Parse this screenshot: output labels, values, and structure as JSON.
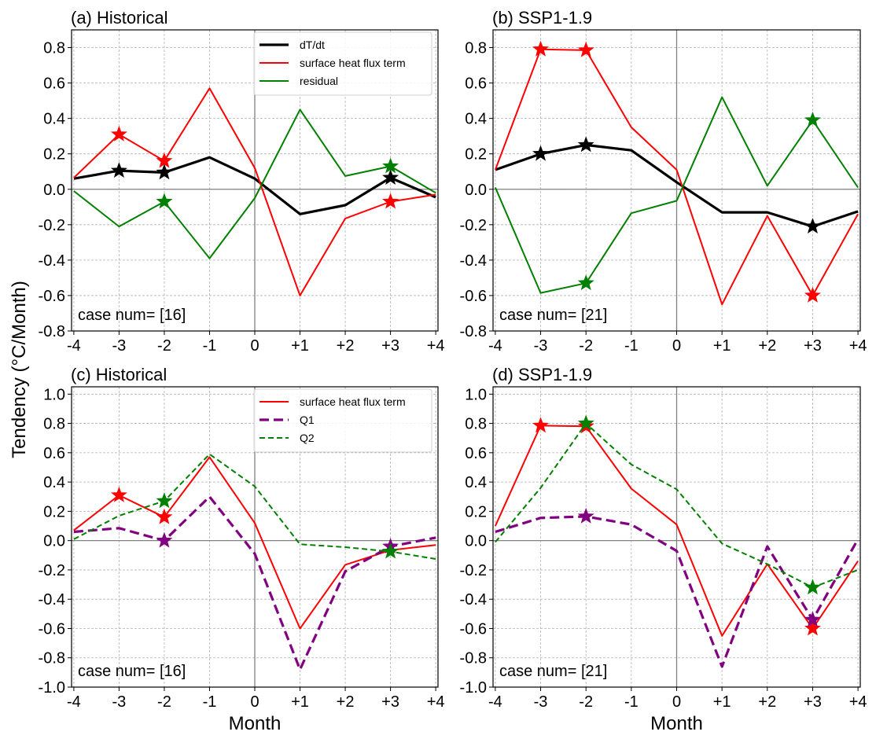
{
  "figure": {
    "ylabel": "Tendency (°C/Month)",
    "xlabel": "Month"
  },
  "chart_data": [
    {
      "type": "line",
      "title": "(a) Historical",
      "xlabel": "",
      "ylabel": "Tendency (°C/Month)",
      "categories": [
        "-4",
        "-3",
        "-2",
        "-1",
        "0",
        "+1",
        "+2",
        "+3",
        "+4"
      ],
      "x": [
        -4,
        -3,
        -2,
        -1,
        0,
        1,
        2,
        3,
        4
      ],
      "xlim": [
        -4.05,
        4.05
      ],
      "ylim": [
        -0.8,
        0.9
      ],
      "yticks": [
        -0.8,
        -0.6,
        -0.4,
        -0.2,
        0.0,
        0.2,
        0.4,
        0.6,
        0.8
      ],
      "ytick_labels": [
        "-0.8",
        "-0.6",
        "-0.4",
        "-0.2",
        "0.0",
        "0.2",
        "0.4",
        "0.6",
        "0.8"
      ],
      "grid": true,
      "legend": "top-right",
      "annotation": "case num= [16]",
      "series": [
        {
          "name": "dT/dt",
          "color": "#000000",
          "style": "solid",
          "width": "thick",
          "values": [
            0.06,
            0.105,
            0.095,
            0.18,
            0.06,
            -0.14,
            -0.09,
            0.065,
            -0.045
          ],
          "star_at": [
            "-3",
            "-2",
            "+3"
          ]
        },
        {
          "name": "surface heat flux term",
          "color": "#ff0000",
          "style": "solid",
          "width": "normal",
          "values": [
            0.065,
            0.31,
            0.16,
            0.57,
            0.12,
            -0.6,
            -0.165,
            -0.07,
            -0.03
          ],
          "star_at": [
            "-3",
            "-2",
            "+3"
          ]
        },
        {
          "name": "residual",
          "color": "#008000",
          "style": "solid",
          "width": "normal",
          "values": [
            -0.01,
            -0.21,
            -0.07,
            -0.39,
            -0.05,
            0.45,
            0.075,
            0.13,
            -0.02
          ],
          "star_at": [
            "-2",
            "+3"
          ]
        }
      ]
    },
    {
      "type": "line",
      "title": "(b) SSP1-1.9",
      "xlabel": "",
      "ylabel": "",
      "categories": [
        "-4",
        "-3",
        "-2",
        "-1",
        "0",
        "+1",
        "+2",
        "+3",
        "+4"
      ],
      "x": [
        -4,
        -3,
        -2,
        -1,
        0,
        1,
        2,
        3,
        4
      ],
      "xlim": [
        -4.05,
        4.05
      ],
      "ylim": [
        -0.8,
        0.9
      ],
      "yticks": [
        -0.8,
        -0.6,
        -0.4,
        -0.2,
        0.0,
        0.2,
        0.4,
        0.6,
        0.8
      ],
      "ytick_labels": [
        "-0.8",
        "-0.6",
        "-0.4",
        "-0.2",
        "0.0",
        "0.2",
        "0.4",
        "0.6",
        "0.8"
      ],
      "grid": true,
      "legend": "none",
      "annotation": "case num= [21]",
      "series": [
        {
          "name": "dT/dt",
          "color": "#000000",
          "style": "solid",
          "width": "thick",
          "values": [
            0.11,
            0.2,
            0.25,
            0.22,
            0.04,
            -0.13,
            -0.13,
            -0.21,
            -0.125
          ],
          "star_at": [
            "-3",
            "-2",
            "+3"
          ]
        },
        {
          "name": "surface heat flux term",
          "color": "#ff0000",
          "style": "solid",
          "width": "normal",
          "values": [
            0.11,
            0.79,
            0.785,
            0.35,
            0.11,
            -0.65,
            -0.15,
            -0.6,
            -0.14
          ],
          "star_at": [
            "-3",
            "-2",
            "+3"
          ]
        },
        {
          "name": "residual",
          "color": "#008000",
          "style": "solid",
          "width": "normal",
          "values": [
            0.01,
            -0.585,
            -0.53,
            -0.135,
            -0.065,
            0.52,
            0.02,
            0.39,
            0.01
          ],
          "star_at": [
            "-2",
            "+3"
          ]
        }
      ]
    },
    {
      "type": "line",
      "title": "(c) Historical",
      "xlabel": "Month",
      "ylabel": "Tendency (°C/Month)",
      "categories": [
        "-4",
        "-3",
        "-2",
        "-1",
        "0",
        "+1",
        "+2",
        "+3",
        "+4"
      ],
      "x": [
        -4,
        -3,
        -2,
        -1,
        0,
        1,
        2,
        3,
        4
      ],
      "xlim": [
        -4.05,
        4.05
      ],
      "ylim": [
        -1.0,
        1.05
      ],
      "yticks": [
        -1.0,
        -0.8,
        -0.6,
        -0.4,
        -0.2,
        0.0,
        0.2,
        0.4,
        0.6,
        0.8,
        1.0
      ],
      "ytick_labels": [
        "-1.0",
        "-0.8",
        "-0.6",
        "-0.4",
        "-0.2",
        "0.0",
        "0.2",
        "0.4",
        "0.6",
        "0.8",
        "1.0"
      ],
      "grid": true,
      "legend": "top-right",
      "annotation": "case num= [16]",
      "series": [
        {
          "name": "surface heat flux term",
          "color": "#ff0000",
          "style": "solid",
          "width": "normal",
          "values": [
            0.07,
            0.31,
            0.16,
            0.57,
            0.12,
            -0.6,
            -0.165,
            -0.065,
            -0.03
          ],
          "star_at": [
            "-3",
            "-2"
          ]
        },
        {
          "name": "Q1",
          "color": "#800080",
          "style": "long-dash",
          "width": "thick",
          "values": [
            0.06,
            0.085,
            0.0,
            0.3,
            -0.09,
            -0.88,
            -0.21,
            -0.04,
            0.02
          ],
          "star_at": [
            "-2",
            "+3"
          ]
        },
        {
          "name": "Q2",
          "color": "#008000",
          "style": "dash",
          "width": "normal",
          "values": [
            0.01,
            0.17,
            0.27,
            0.59,
            0.37,
            -0.025,
            -0.045,
            -0.075,
            -0.125
          ],
          "star_at": [
            "-2",
            "+3"
          ]
        }
      ]
    },
    {
      "type": "line",
      "title": "(d) SSP1-1.9",
      "xlabel": "Month",
      "ylabel": "",
      "categories": [
        "-4",
        "-3",
        "-2",
        "-1",
        "0",
        "+1",
        "+2",
        "+3",
        "+4"
      ],
      "x": [
        -4,
        -3,
        -2,
        -1,
        0,
        1,
        2,
        3,
        4
      ],
      "xlim": [
        -4.05,
        4.05
      ],
      "ylim": [
        -1.0,
        1.05
      ],
      "yticks": [
        -1.0,
        -0.8,
        -0.6,
        -0.4,
        -0.2,
        0.0,
        0.2,
        0.4,
        0.6,
        0.8,
        1.0
      ],
      "ytick_labels": [
        "-1.0",
        "-0.8",
        "-0.6",
        "-0.4",
        "-0.2",
        "0.0",
        "0.2",
        "0.4",
        "0.6",
        "0.8",
        "1.0"
      ],
      "grid": true,
      "legend": "none",
      "annotation": "case num= [21]",
      "series": [
        {
          "name": "surface heat flux term",
          "color": "#ff0000",
          "style": "solid",
          "width": "normal",
          "values": [
            0.1,
            0.785,
            0.78,
            0.355,
            0.11,
            -0.65,
            -0.16,
            -0.6,
            -0.14
          ],
          "star_at": [
            "-3",
            "-2",
            "+3"
          ]
        },
        {
          "name": "Q1",
          "color": "#800080",
          "style": "long-dash",
          "width": "thick",
          "values": [
            0.06,
            0.155,
            0.165,
            0.11,
            -0.07,
            -0.86,
            -0.04,
            -0.54,
            0.01
          ],
          "star_at": [
            "-2",
            "+3"
          ]
        },
        {
          "name": "Q2",
          "color": "#008000",
          "style": "dash",
          "width": "normal",
          "values": [
            -0.01,
            0.36,
            0.8,
            0.52,
            0.35,
            -0.02,
            -0.16,
            -0.32,
            -0.2
          ],
          "star_at": [
            "-2",
            "+3"
          ]
        }
      ]
    }
  ]
}
